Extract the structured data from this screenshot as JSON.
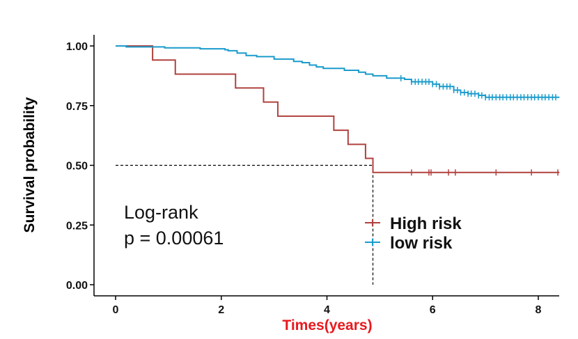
{
  "chart_data": {
    "type": "line",
    "subtype": "kaplan-meier",
    "title": "",
    "xlabel": "Times(years)",
    "xlabel_color": "#e8191e",
    "ylabel": "Survival probability",
    "xlim": [
      -0.2,
      8.4
    ],
    "ylim": [
      0,
      1
    ],
    "xticks": [
      0,
      2,
      4,
      6,
      8
    ],
    "xtick_labels": [
      "0",
      "2",
      "4",
      "6",
      "8"
    ],
    "yticks": [
      0,
      0.25,
      0.5,
      0.75,
      1
    ],
    "ytick_labels": [
      "0.00",
      "0.25",
      "0.50",
      "0.75",
      "1.00"
    ],
    "grid": false,
    "annotation": {
      "line1": "Log-rank",
      "line2": "p = 0.00061"
    },
    "median_survival": {
      "series": "High risk",
      "x": 4.87,
      "y": 0.5
    },
    "legend_position": "center-right",
    "series": [
      {
        "name": "High risk",
        "color": "#b0413e",
        "steps": [
          [
            0,
            1.0
          ],
          [
            0.7,
            0.941
          ],
          [
            1.13,
            0.882
          ],
          [
            2.27,
            0.824
          ],
          [
            2.8,
            0.765
          ],
          [
            3.07,
            0.706
          ],
          [
            4.13,
            0.647
          ],
          [
            4.4,
            0.588
          ],
          [
            4.73,
            0.529
          ],
          [
            4.87,
            0.47
          ],
          [
            8.4,
            0.47
          ]
        ],
        "censor_times": [
          5.6,
          5.93,
          5.97,
          6.3,
          6.43,
          7.2,
          7.87,
          8.37
        ]
      },
      {
        "name": "low risk",
        "color": "#1a9bcc",
        "steps": [
          [
            0,
            1.0
          ],
          [
            0.2,
            0.996
          ],
          [
            0.93,
            0.992
          ],
          [
            1.6,
            0.988
          ],
          [
            2.07,
            0.984
          ],
          [
            2.13,
            0.98
          ],
          [
            2.3,
            0.97
          ],
          [
            2.47,
            0.96
          ],
          [
            2.67,
            0.955
          ],
          [
            3.0,
            0.945
          ],
          [
            3.37,
            0.935
          ],
          [
            3.53,
            0.93
          ],
          [
            3.67,
            0.92
          ],
          [
            3.8,
            0.912
          ],
          [
            3.93,
            0.906
          ],
          [
            4.33,
            0.898
          ],
          [
            4.6,
            0.89
          ],
          [
            4.73,
            0.882
          ],
          [
            4.87,
            0.875
          ],
          [
            5.13,
            0.865
          ],
          [
            5.47,
            0.86
          ],
          [
            5.6,
            0.85
          ],
          [
            6.0,
            0.84
          ],
          [
            6.13,
            0.83
          ],
          [
            6.4,
            0.815
          ],
          [
            6.53,
            0.805
          ],
          [
            6.67,
            0.8
          ],
          [
            6.87,
            0.793
          ],
          [
            7.0,
            0.785
          ],
          [
            8.4,
            0.785
          ]
        ],
        "censor_times": [
          5.4,
          5.6,
          5.67,
          5.73,
          5.8,
          5.87,
          5.93,
          6.0,
          6.07,
          6.13,
          6.2,
          6.27,
          6.33,
          6.4,
          6.47,
          6.53,
          6.6,
          6.67,
          6.73,
          6.8,
          6.87,
          6.93,
          7.0,
          7.07,
          7.13,
          7.2,
          7.27,
          7.33,
          7.4,
          7.47,
          7.53,
          7.6,
          7.67,
          7.73,
          7.8,
          7.87,
          7.93,
          8.0,
          8.07,
          8.13,
          8.2,
          8.27,
          8.33
        ]
      }
    ]
  }
}
